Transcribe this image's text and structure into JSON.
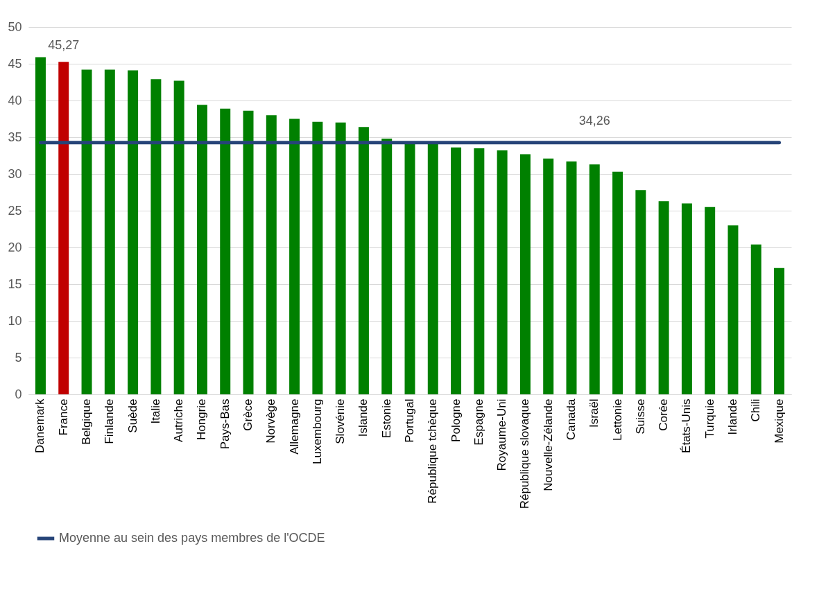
{
  "chart_data": {
    "type": "bar",
    "categories": [
      "Danemark",
      "France",
      "Belgique",
      "Finlande",
      "Suède",
      "Italie",
      "Autriche",
      "Hongrie",
      "Pays-Bas",
      "Grèce",
      "Norvège",
      "Allemagne",
      "Luxembourg",
      "Slovénie",
      "Islande",
      "Estonie",
      "Portugal",
      "République tchèque",
      "Pologne",
      "Espagne",
      "Royaume-Uni",
      "République slovaque",
      "Nouvelle-Zélande",
      "Canada",
      "Israël",
      "Lettonie",
      "Suisse",
      "Corée",
      "États-Unis",
      "Turquie",
      "Irlande",
      "Chili",
      "Mexique"
    ],
    "series": [
      {
        "colors": [
          "#008000",
          "#c00000",
          "#008000",
          "#008000",
          "#008000",
          "#008000",
          "#008000",
          "#008000",
          "#008000",
          "#008000",
          "#008000",
          "#008000",
          "#008000",
          "#008000",
          "#008000",
          "#008000",
          "#008000",
          "#008000",
          "#008000",
          "#008000",
          "#008000",
          "#008000",
          "#008000",
          "#008000",
          "#008000",
          "#008000",
          "#008000",
          "#008000",
          "#008000",
          "#008000",
          "#008000",
          "#008000",
          "#008000"
        ],
        "values": [
          45.9,
          45.27,
          44.2,
          44.2,
          44.1,
          42.9,
          42.7,
          39.4,
          38.9,
          38.6,
          38.0,
          37.5,
          37.1,
          37.0,
          36.4,
          34.8,
          34.3,
          34.2,
          33.6,
          33.5,
          33.2,
          32.7,
          32.1,
          31.7,
          31.3,
          30.3,
          27.8,
          26.3,
          26.0,
          25.5,
          23.0,
          20.4,
          17.2
        ],
        "value_labels": [
          null,
          "45,27",
          null,
          null,
          null,
          null,
          null,
          null,
          null,
          null,
          null,
          null,
          null,
          null,
          null,
          null,
          null,
          null,
          null,
          null,
          null,
          null,
          null,
          null,
          null,
          null,
          null,
          null,
          null,
          null,
          null,
          null,
          null
        ]
      },
      {
        "type": "line",
        "name": "Moyenne au sein des pays membres de l'OCDE",
        "color": "#264478",
        "values": [
          34.26,
          34.26,
          34.26,
          34.26,
          34.26,
          34.26,
          34.26,
          34.26,
          34.26,
          34.26,
          34.26,
          34.26,
          34.26,
          34.26,
          34.26,
          34.26,
          34.26,
          34.26,
          34.26,
          34.26,
          34.26,
          34.26,
          34.26,
          34.26,
          34.26,
          34.26,
          34.26,
          34.26,
          34.26,
          34.26,
          34.26,
          34.26,
          34.26
        ],
        "value_labels": [
          null,
          null,
          null,
          null,
          null,
          null,
          null,
          null,
          null,
          null,
          null,
          null,
          null,
          null,
          null,
          null,
          null,
          null,
          null,
          null,
          null,
          null,
          null,
          null,
          "34,26",
          null,
          null,
          null,
          null,
          null,
          null,
          null,
          null
        ]
      }
    ],
    "ylim": [
      0,
      50
    ],
    "yticks": [
      0,
      5,
      10,
      15,
      20,
      25,
      30,
      35,
      40,
      45,
      50
    ],
    "grid": "y",
    "legend": "bottom"
  }
}
